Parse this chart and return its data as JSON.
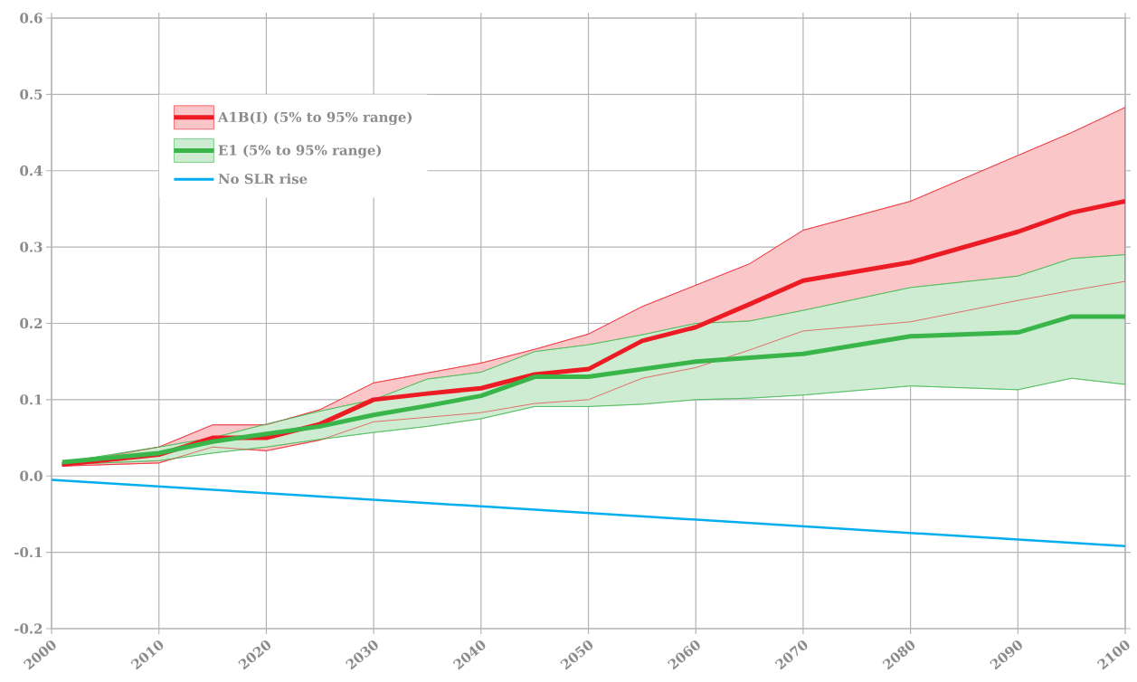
{
  "chart_data": {
    "type": "line",
    "series": [
      {
        "name": "A1B(I) (5% to 95% range)",
        "color": "#ed1c24",
        "x": [
          2001,
          2010,
          2015,
          2020,
          2025,
          2030,
          2035,
          2040,
          2045,
          2050,
          2055,
          2060,
          2065,
          2070,
          2080,
          2090,
          2095,
          2100
        ],
        "values": [
          0.015,
          0.028,
          0.05,
          0.05,
          0.068,
          0.1,
          0.108,
          0.115,
          0.133,
          0.14,
          0.177,
          0.195,
          0.225,
          0.256,
          0.28,
          0.32,
          0.345,
          0.36
        ],
        "lower": [
          0.013,
          0.017,
          0.038,
          0.033,
          0.047,
          0.071,
          0.077,
          0.083,
          0.095,
          0.1,
          0.128,
          0.142,
          0.165,
          0.19,
          0.202,
          0.23,
          0.243,
          0.255
        ],
        "upper": [
          0.015,
          0.038,
          0.067,
          0.067,
          0.087,
          0.122,
          0.135,
          0.148,
          0.166,
          0.186,
          0.222,
          0.25,
          0.278,
          0.322,
          0.36,
          0.42,
          0.45,
          0.483
        ]
      },
      {
        "name": "E1 (5% to 95% range)",
        "color": "#39b54a",
        "x": [
          2001,
          2010,
          2015,
          2020,
          2025,
          2030,
          2035,
          2040,
          2045,
          2050,
          2055,
          2060,
          2065,
          2070,
          2080,
          2090,
          2095,
          2100
        ],
        "values": [
          0.018,
          0.03,
          0.045,
          0.055,
          0.065,
          0.08,
          0.092,
          0.105,
          0.13,
          0.13,
          0.14,
          0.15,
          0.155,
          0.16,
          0.183,
          0.188,
          0.209,
          0.209
        ],
        "lower": [
          0.015,
          0.02,
          0.03,
          0.038,
          0.048,
          0.057,
          0.065,
          0.075,
          0.091,
          0.091,
          0.094,
          0.1,
          0.102,
          0.106,
          0.118,
          0.113,
          0.128,
          0.12
        ],
        "upper": [
          0.018,
          0.038,
          0.05,
          0.068,
          0.085,
          0.1,
          0.127,
          0.136,
          0.163,
          0.172,
          0.185,
          0.2,
          0.203,
          0.217,
          0.247,
          0.262,
          0.285,
          0.29
        ]
      },
      {
        "name": "No SLR rise",
        "color": "#00aeef",
        "x": [
          2000,
          2100
        ],
        "values": [
          -0.005,
          -0.092
        ]
      }
    ],
    "xlim": [
      2000,
      2100
    ],
    "xticks": [
      2000,
      2010,
      2020,
      2030,
      2040,
      2050,
      2060,
      2070,
      2080,
      2090,
      2100
    ],
    "ylim": [
      -0.2,
      0.6
    ],
    "yticks": [
      -0.2,
      -0.1,
      {
        "value": 0,
        "label": "0.0"
      },
      0.1,
      0.2,
      0.3,
      0.4,
      0.5,
      0.6
    ],
    "grid": true,
    "legend": "top left"
  }
}
